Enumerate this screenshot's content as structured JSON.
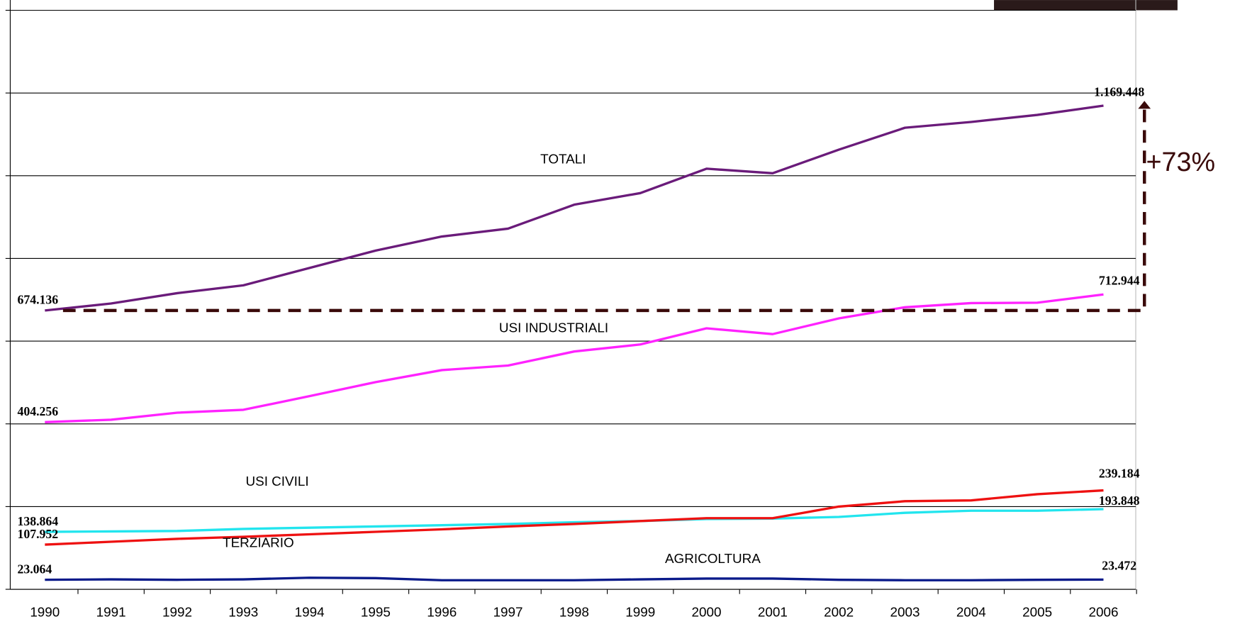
{
  "chart_data": {
    "type": "line",
    "categories": [
      "1990",
      "1991",
      "1992",
      "1993",
      "1994",
      "1995",
      "1996",
      "1997",
      "1998",
      "1999",
      "2000",
      "2001",
      "2002",
      "2003",
      "2004",
      "2005",
      "2006"
    ],
    "series": [
      {
        "name": "TOTALI",
        "color": "#6a1b7a",
        "values": [
          674.136,
          691,
          716,
          735,
          777,
          819,
          853,
          872,
          930,
          958,
          1017,
          1006,
          1063,
          1116,
          1130,
          1147,
          1169.448
        ],
        "value_labels": [
          "674.136",
          null,
          null,
          null,
          null,
          null,
          null,
          null,
          null,
          null,
          null,
          null,
          null,
          null,
          null,
          null,
          "1.169.448"
        ]
      },
      {
        "name": "USI INDUSTRIALI",
        "color": "#ff22ff",
        "values": [
          404.256,
          410,
          427,
          434,
          467,
          501,
          530,
          541,
          575,
          592,
          631,
          617,
          655,
          682,
          692,
          693,
          712.944
        ],
        "value_labels": [
          "404.256",
          null,
          null,
          null,
          null,
          null,
          null,
          null,
          null,
          null,
          null,
          null,
          null,
          null,
          null,
          null,
          "712.944"
        ]
      },
      {
        "name": "USI CIVILI",
        "color": "#22e5ee",
        "values": [
          138.864,
          140,
          141,
          146,
          149,
          152,
          155,
          158,
          162,
          165,
          170,
          171,
          175,
          185,
          190,
          190,
          193.848
        ],
        "value_labels": [
          "138.864",
          null,
          null,
          null,
          null,
          null,
          null,
          null,
          null,
          null,
          null,
          null,
          null,
          null,
          null,
          null,
          "193.848"
        ]
      },
      {
        "name": "TERZIARIO",
        "color": "#ee1111",
        "values": [
          107.952,
          115,
          122,
          127,
          133,
          139,
          145,
          152,
          158,
          165,
          172,
          172,
          200,
          213,
          215,
          230,
          239.184
        ],
        "value_labels": [
          "107.952",
          null,
          null,
          null,
          null,
          null,
          null,
          null,
          null,
          null,
          null,
          null,
          null,
          null,
          null,
          null,
          "239.184"
        ]
      },
      {
        "name": "AGRICOLTURA",
        "color": "#0a1a8a",
        "values": [
          23.064,
          24,
          23,
          24,
          28,
          27,
          22,
          22,
          22,
          24,
          26,
          26,
          23,
          22,
          22,
          23,
          23.472
        ],
        "value_labels": [
          "23.064",
          null,
          null,
          null,
          null,
          null,
          null,
          null,
          null,
          null,
          null,
          null,
          null,
          null,
          null,
          null,
          "23.472"
        ]
      }
    ],
    "ylim": [
      0,
      1400
    ],
    "yticks": [
      0,
      200,
      400,
      600,
      800,
      1000,
      1200,
      1400
    ],
    "grid": true,
    "annotation": "+73%"
  }
}
